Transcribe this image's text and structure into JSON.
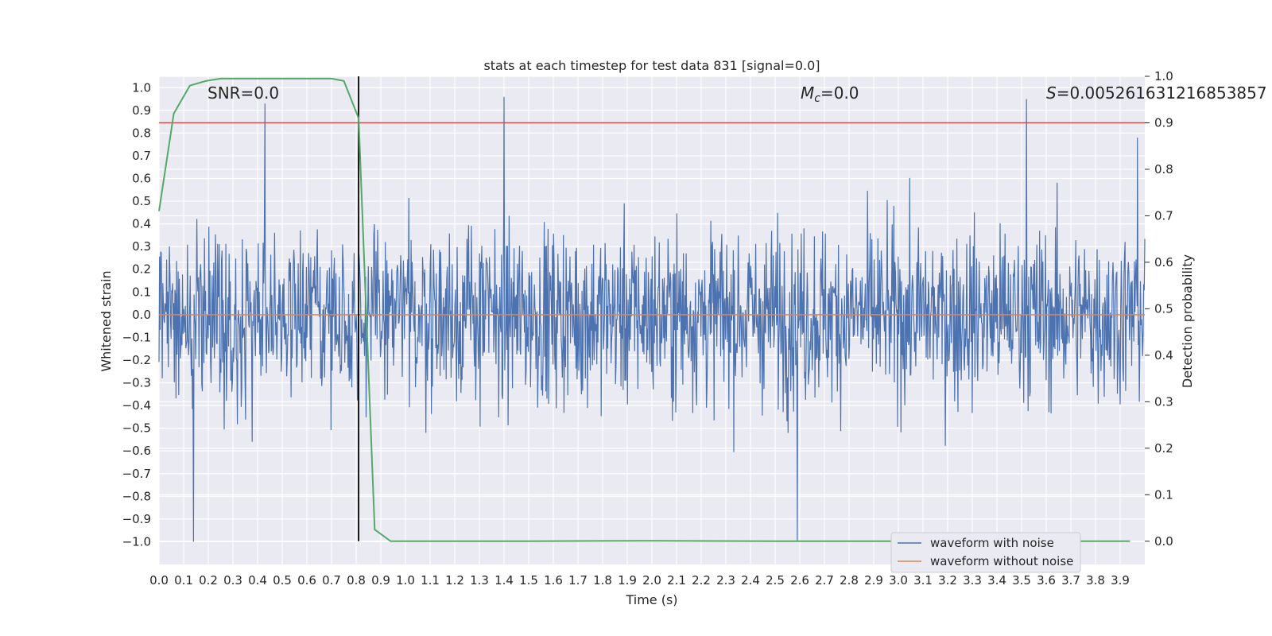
{
  "chart_data": {
    "type": "line",
    "title": "stats at each timestep for test data 831 [signal=0.0]",
    "xlabel": "Time (s)",
    "ylabel": "Whitened strain",
    "y2label": "Detection probability",
    "xlim": [
      0.0,
      4.0
    ],
    "ylim": [
      -1.1,
      1.05
    ],
    "y2lim": [
      -0.05,
      1.0
    ],
    "grid": true,
    "x_ticks": [
      "0.0",
      "0.1",
      "0.2",
      "0.3",
      "0.4",
      "0.5",
      "0.6",
      "0.7",
      "0.8",
      "0.9",
      "1.0",
      "1.1",
      "1.2",
      "1.3",
      "1.4",
      "1.5",
      "1.6",
      "1.7",
      "1.8",
      "1.9",
      "2.0",
      "2.1",
      "2.2",
      "2.3",
      "2.4",
      "2.5",
      "2.6",
      "2.7",
      "2.8",
      "2.9",
      "3.0",
      "3.1",
      "3.2",
      "3.3",
      "3.4",
      "3.5",
      "3.6",
      "3.7",
      "3.8",
      "3.9"
    ],
    "y_ticks": [
      "1.0",
      "0.9",
      "0.8",
      "0.7",
      "0.6",
      "0.5",
      "0.4",
      "0.3",
      "0.2",
      "0.1",
      "0.0",
      "-0.1",
      "-0.2",
      "-0.3",
      "-0.4",
      "-0.5",
      "-0.6",
      "-0.7",
      "-0.8",
      "-0.9",
      "-1.0"
    ],
    "y2_ticks": [
      "1.0",
      "0.9",
      "0.8",
      "0.7",
      "0.6",
      "0.5",
      "0.4",
      "0.3",
      "0.2",
      "0.1",
      "0.0"
    ],
    "annotations": {
      "snr": "SNR=0.0",
      "mc_symbol": "M",
      "mc_sub": "c",
      "mc_value": "=0.0",
      "s_symbol": "S",
      "s_value": "=0.005261631216853857"
    },
    "threshold": 0.9,
    "peak_time": 0.81,
    "series": [
      {
        "name": "waveform with noise",
        "color": "#4c72b0",
        "description_note": "dense whitened noise, roughly between -1.0 and 0.95",
        "sample_count": 4096,
        "notable_extremes": [
          {
            "x": 0.14,
            "y": -1.0
          },
          {
            "x": 0.43,
            "y": 0.93
          },
          {
            "x": 1.4,
            "y": 0.96
          },
          {
            "x": 2.59,
            "y": -1.0
          },
          {
            "x": 3.52,
            "y": 0.95
          },
          {
            "x": 3.97,
            "y": 0.78
          }
        ]
      },
      {
        "name": "waveform without noise",
        "color": "#dd8452",
        "values_constant": 0.0
      },
      {
        "name": "",
        "color": "#55a868",
        "axis": "right",
        "x": [
          0.0,
          0.06,
          0.125,
          0.19,
          0.25,
          0.3,
          0.4,
          0.5,
          0.6,
          0.7,
          0.75,
          0.81,
          0.875,
          0.94,
          1.0,
          1.5,
          2.0,
          2.5,
          3.0,
          3.5,
          3.94
        ],
        "y": [
          0.71,
          0.92,
          0.98,
          0.99,
          0.995,
          0.995,
          0.995,
          0.995,
          0.995,
          0.995,
          0.99,
          0.91,
          0.025,
          0.0,
          0.0,
          0.0,
          0.001,
          0.0,
          0.0,
          0.0,
          0.0
        ]
      }
    ],
    "legend": {
      "placement": "lower-right",
      "entries": [
        "waveform with noise",
        "waveform without noise"
      ]
    },
    "colors": {
      "background": "#eaeaf2",
      "grid": "#ffffff",
      "threshold_line": "#c44e52",
      "peak_line": "#000000"
    }
  }
}
